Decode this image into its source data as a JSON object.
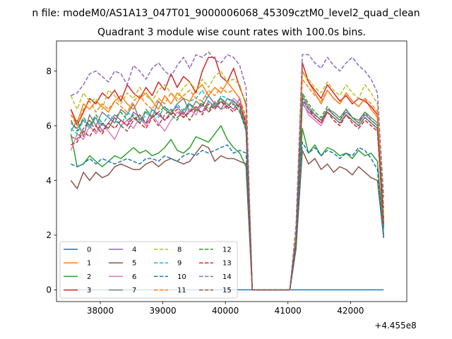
{
  "chart_data": {
    "type": "line",
    "suptitle": "n file: modeM0/AS1A13_047T01_9000006068_45309cztM0_level2_quad_clean",
    "title": "Quadrant 3 module wise count rates with 100.0s bins.",
    "xlabel": "",
    "ylabel": "",
    "x_offset_label": "+4.455e8",
    "x_offset": 445500000,
    "xlim": [
      37300,
      42900
    ],
    "ylim": [
      -0.43,
      9.1
    ],
    "xticks": [
      38000,
      39000,
      40000,
      41000,
      42000
    ],
    "xtick_labels": [
      "38000",
      "39000",
      "40000",
      "41000",
      "42000"
    ],
    "yticks": [
      0,
      2,
      4,
      6,
      8
    ],
    "ytick_labels": [
      "0",
      "2",
      "4",
      "6",
      "8"
    ],
    "grid": false,
    "legend_position": "lower-left",
    "legend_columns": 4,
    "x_start": 37530,
    "x_step": 100,
    "series": [
      {
        "name": "0",
        "color": "#1f77b4",
        "dash": "solid",
        "values": [
          0,
          0,
          0,
          0,
          0,
          0,
          0,
          0,
          0,
          0,
          0,
          0,
          0,
          0,
          0,
          0,
          0,
          0,
          0,
          0,
          0,
          0,
          0,
          0,
          0,
          0,
          0,
          0,
          0,
          0,
          0,
          0,
          0,
          0,
          0,
          0,
          0,
          0,
          0,
          0,
          0,
          0,
          0,
          0,
          0,
          0,
          0,
          0,
          0,
          0,
          0
        ]
      },
      {
        "name": "1",
        "color": "#ff7f0e",
        "dash": "solid",
        "values": [
          6.6,
          6.1,
          6.8,
          6.6,
          6.9,
          6.7,
          6.5,
          6.9,
          7.1,
          6.8,
          6.6,
          7.0,
          7.2,
          6.9,
          6.6,
          7.1,
          6.8,
          7.2,
          7.0,
          6.9,
          7.3,
          7.5,
          7.1,
          7.4,
          7.2,
          7.6,
          7.3,
          7.0,
          6.0,
          0,
          0,
          0,
          0,
          0,
          0,
          0,
          1.9,
          8.0,
          7.6,
          7.2,
          6.8,
          7.3,
          7.0,
          6.8,
          7.2,
          6.9,
          6.7,
          7.0,
          6.6,
          6.3,
          2.5
        ]
      },
      {
        "name": "2",
        "color": "#2ca02c",
        "dash": "solid",
        "values": [
          5.7,
          4.5,
          4.6,
          4.9,
          4.7,
          4.5,
          4.7,
          4.9,
          4.8,
          5.0,
          5.2,
          5.0,
          5.1,
          4.9,
          5.0,
          5.2,
          5.5,
          5.1,
          5.0,
          5.2,
          5.6,
          5.5,
          5.4,
          5.7,
          6.0,
          5.5,
          5.2,
          5.0,
          4.5,
          0,
          0,
          0,
          0,
          0,
          0,
          0,
          1.8,
          5.9,
          5.0,
          5.3,
          4.9,
          5.2,
          5.1,
          4.9,
          5.0,
          4.8,
          5.1,
          4.9,
          5.0,
          4.7,
          2.0
        ]
      },
      {
        "name": "3",
        "color": "#d62728",
        "dash": "solid",
        "values": [
          6.6,
          6.0,
          6.5,
          7.0,
          6.8,
          7.2,
          7.0,
          7.3,
          6.9,
          7.5,
          7.2,
          7.0,
          7.4,
          7.1,
          7.6,
          7.3,
          7.9,
          7.4,
          7.8,
          7.6,
          7.2,
          8.0,
          8.5,
          8.5,
          7.8,
          7.6,
          8.1,
          7.4,
          6.8,
          0,
          0,
          0,
          0,
          0,
          0,
          0,
          2.0,
          8.3,
          7.6,
          7.3,
          7.0,
          7.5,
          7.2,
          6.9,
          7.1,
          6.8,
          7.0,
          6.9,
          6.7,
          6.4,
          2.6
        ]
      },
      {
        "name": "4",
        "color": "#9467bd",
        "dash": "solid",
        "values": [
          6.1,
          5.9,
          6.2,
          6.0,
          6.3,
          5.8,
          6.1,
          6.4,
          6.2,
          6.0,
          6.5,
          6.3,
          6.1,
          6.6,
          6.4,
          6.2,
          6.5,
          6.7,
          6.4,
          6.8,
          6.6,
          6.5,
          6.9,
          6.7,
          7.0,
          6.8,
          6.6,
          7.0,
          5.8,
          0,
          0,
          0,
          0,
          0,
          0,
          0,
          1.7,
          6.8,
          6.5,
          6.3,
          6.1,
          6.6,
          6.4,
          6.2,
          6.5,
          6.3,
          6.1,
          6.4,
          6.2,
          6.0,
          2.3
        ]
      },
      {
        "name": "5",
        "color": "#8c564b",
        "dash": "solid",
        "values": [
          4.0,
          3.7,
          4.3,
          4.0,
          4.3,
          4.1,
          4.2,
          4.5,
          4.6,
          4.5,
          4.4,
          4.4,
          4.6,
          4.7,
          4.5,
          4.7,
          4.8,
          4.7,
          4.6,
          4.7,
          5.0,
          5.3,
          5.2,
          4.7,
          4.9,
          4.8,
          4.8,
          4.7,
          4.6,
          0,
          0,
          0,
          0,
          0,
          0,
          0,
          1.5,
          5.1,
          4.6,
          4.8,
          4.4,
          4.6,
          4.3,
          4.5,
          4.4,
          4.2,
          4.5,
          4.3,
          4.1,
          4.0,
          1.9
        ]
      },
      {
        "name": "6",
        "color": "#e377c2",
        "dash": "solid",
        "values": [
          5.1,
          5.7,
          5.5,
          6.0,
          5.7,
          6.1,
          5.8,
          5.5,
          6.0,
          6.2,
          5.9,
          6.3,
          6.0,
          6.4,
          6.1,
          5.8,
          6.2,
          6.5,
          6.3,
          6.6,
          6.4,
          6.8,
          6.5,
          6.9,
          6.6,
          6.7,
          7.0,
          6.8,
          6.2,
          0,
          0,
          0,
          0,
          0,
          0,
          0,
          1.8,
          6.9,
          6.4,
          6.2,
          6.0,
          6.5,
          6.3,
          6.1,
          6.4,
          6.2,
          6.0,
          6.3,
          6.1,
          5.9,
          2.2
        ]
      },
      {
        "name": "7",
        "color": "#7f7f7f",
        "dash": "solid",
        "values": [
          5.8,
          6.2,
          5.6,
          6.4,
          6.0,
          6.5,
          6.3,
          6.1,
          6.6,
          6.4,
          6.8,
          6.2,
          6.5,
          6.3,
          6.9,
          6.6,
          6.4,
          6.8,
          7.0,
          6.5,
          6.9,
          6.7,
          7.1,
          6.8,
          6.6,
          7.0,
          6.9,
          6.7,
          5.9,
          0,
          0,
          0,
          0,
          0,
          0,
          0,
          1.8,
          7.1,
          6.7,
          6.4,
          6.2,
          6.6,
          6.5,
          6.3,
          6.6,
          6.3,
          6.2,
          6.5,
          6.3,
          6.1,
          2.3
        ]
      },
      {
        "name": "8",
        "color": "#bcbd22",
        "dash": "dashed",
        "values": [
          7.1,
          6.6,
          7.2,
          6.9,
          7.0,
          6.6,
          7.3,
          7.1,
          6.8,
          7.2,
          7.0,
          7.4,
          7.1,
          6.9,
          7.3,
          7.5,
          7.2,
          7.0,
          7.4,
          7.6,
          7.3,
          7.7,
          7.4,
          7.8,
          8.0,
          7.6,
          7.7,
          7.5,
          6.7,
          0,
          0,
          0,
          0,
          0,
          0,
          0,
          2.1,
          7.9,
          7.7,
          7.4,
          7.2,
          7.6,
          7.3,
          7.1,
          7.5,
          7.2,
          7.0,
          7.5,
          7.2,
          6.8,
          2.7
        ]
      },
      {
        "name": "9",
        "color": "#17becf",
        "dash": "dashed",
        "values": [
          5.9,
          5.7,
          6.2,
          5.9,
          6.3,
          6.0,
          6.4,
          6.2,
          6.0,
          6.5,
          6.3,
          6.1,
          6.4,
          6.6,
          6.3,
          6.7,
          6.5,
          6.8,
          6.5,
          6.9,
          7.0,
          7.3,
          6.9,
          6.6,
          7.1,
          7.0,
          6.8,
          6.5,
          5.8,
          0,
          0,
          0,
          0,
          0,
          0,
          0,
          1.7,
          6.9,
          6.6,
          6.4,
          6.2,
          6.5,
          6.3,
          6.1,
          6.4,
          6.2,
          6.0,
          6.3,
          6.1,
          5.9,
          2.2
        ]
      },
      {
        "name": "10",
        "color": "#1f77b4",
        "dash": "dashed",
        "values": [
          4.6,
          4.5,
          4.6,
          4.8,
          4.6,
          4.8,
          4.7,
          4.6,
          4.7,
          4.8,
          4.7,
          4.6,
          4.8,
          4.8,
          4.7,
          4.9,
          4.8,
          4.7,
          4.9,
          5.0,
          4.9,
          5.1,
          5.0,
          5.1,
          5.2,
          5.3,
          5.0,
          5.1,
          5.0,
          0,
          0,
          0,
          0,
          0,
          0,
          0,
          1.6,
          5.4,
          5.0,
          5.2,
          4.9,
          5.1,
          5.0,
          4.8,
          5.0,
          4.9,
          5.2,
          5.1,
          4.8,
          4.4,
          1.9
        ]
      },
      {
        "name": "11",
        "color": "#ff7f0e",
        "dash": "dashed",
        "values": [
          6.4,
          6.0,
          6.6,
          6.9,
          6.5,
          6.8,
          6.6,
          6.9,
          6.7,
          6.5,
          6.9,
          7.1,
          6.8,
          6.6,
          7.0,
          6.8,
          7.2,
          6.9,
          7.1,
          7.3,
          7.0,
          6.9,
          7.3,
          7.1,
          7.4,
          7.2,
          7.3,
          7.0,
          6.3,
          0,
          0,
          0,
          0,
          0,
          0,
          0,
          2.0,
          7.7,
          7.4,
          7.1,
          6.9,
          7.3,
          7.0,
          6.8,
          7.2,
          6.9,
          6.7,
          7.0,
          6.8,
          6.5,
          2.6
        ]
      },
      {
        "name": "12",
        "color": "#2ca02c",
        "dash": "dashed",
        "values": [
          6.2,
          5.8,
          6.3,
          6.0,
          6.4,
          6.1,
          5.9,
          6.3,
          6.5,
          6.2,
          6.4,
          6.1,
          6.6,
          6.3,
          6.5,
          6.7,
          6.4,
          6.2,
          6.6,
          6.8,
          6.5,
          6.9,
          6.6,
          6.8,
          7.0,
          6.7,
          6.9,
          6.6,
          5.9,
          0,
          0,
          0,
          0,
          0,
          0,
          0,
          1.8,
          7.2,
          6.8,
          6.5,
          6.3,
          6.7,
          6.4,
          6.2,
          6.6,
          6.3,
          6.1,
          6.5,
          6.2,
          6.0,
          2.3
        ]
      },
      {
        "name": "13",
        "color": "#d62728",
        "dash": "dashed",
        "values": [
          5.3,
          5.4,
          5.8,
          5.6,
          6.0,
          5.7,
          6.1,
          5.9,
          6.2,
          6.0,
          6.3,
          6.1,
          5.9,
          6.3,
          6.5,
          6.2,
          6.4,
          6.6,
          6.3,
          6.5,
          6.7,
          6.4,
          6.8,
          6.6,
          6.9,
          6.7,
          6.5,
          6.8,
          6.1,
          0,
          0,
          0,
          0,
          0,
          0,
          0,
          1.8,
          7.0,
          6.6,
          6.3,
          6.1,
          6.5,
          6.2,
          6.0,
          6.4,
          6.1,
          5.9,
          6.2,
          6.0,
          5.8,
          2.4
        ]
      },
      {
        "name": "14",
        "color": "#9467bd",
        "dash": "dashed",
        "values": [
          7.1,
          7.2,
          7.5,
          7.9,
          8.0,
          7.8,
          7.6,
          8.0,
          7.9,
          7.5,
          8.2,
          8.0,
          7.7,
          8.1,
          8.3,
          8.0,
          7.8,
          8.2,
          8.5,
          8.1,
          8.6,
          8.5,
          8.7,
          8.4,
          8.3,
          8.6,
          8.5,
          8.2,
          7.4,
          0,
          0,
          0,
          0,
          0,
          0,
          0,
          2.4,
          8.6,
          8.6,
          8.3,
          8.1,
          8.5,
          8.2,
          8.0,
          8.3,
          8.5,
          8.2,
          8.0,
          7.7,
          7.2,
          3.4
        ]
      },
      {
        "name": "15",
        "color": "#8c564b",
        "dash": "dashed",
        "values": [
          5.6,
          5.5,
          5.9,
          6.2,
          5.8,
          6.1,
          5.9,
          6.3,
          6.0,
          5.8,
          6.2,
          6.4,
          6.1,
          6.3,
          6.0,
          6.4,
          6.6,
          6.3,
          6.5,
          6.2,
          6.6,
          6.8,
          6.5,
          6.7,
          6.9,
          6.6,
          6.8,
          6.5,
          5.9,
          0,
          0,
          0,
          0,
          0,
          0,
          0,
          1.8,
          7.0,
          6.6,
          6.4,
          6.2,
          6.5,
          6.3,
          6.1,
          6.4,
          6.2,
          6.0,
          6.3,
          6.1,
          5.9,
          3.0
        ]
      }
    ]
  }
}
